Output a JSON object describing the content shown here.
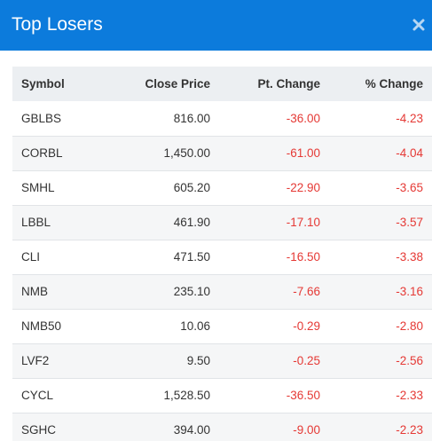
{
  "modal": {
    "title": "Top Losers",
    "close_icon": "close-x-icon",
    "header_color": "#0c7bdc"
  },
  "table": {
    "headers": {
      "symbol": "Symbol",
      "close_price": "Close Price",
      "pt_change": "Pt. Change",
      "pct_change": "% Change"
    },
    "negative_color": "#e53935",
    "rows": [
      {
        "symbol": "GBLBS",
        "close_price": "816.00",
        "pt_change": "-36.00",
        "pct_change": "-4.23"
      },
      {
        "symbol": "CORBL",
        "close_price": "1,450.00",
        "pt_change": "-61.00",
        "pct_change": "-4.04"
      },
      {
        "symbol": "SMHL",
        "close_price": "605.20",
        "pt_change": "-22.90",
        "pct_change": "-3.65"
      },
      {
        "symbol": "LBBL",
        "close_price": "461.90",
        "pt_change": "-17.10",
        "pct_change": "-3.57"
      },
      {
        "symbol": "CLI",
        "close_price": "471.50",
        "pt_change": "-16.50",
        "pct_change": "-3.38"
      },
      {
        "symbol": "NMB",
        "close_price": "235.10",
        "pt_change": "-7.66",
        "pct_change": "-3.16"
      },
      {
        "symbol": "NMB50",
        "close_price": "10.06",
        "pt_change": "-0.29",
        "pct_change": "-2.80"
      },
      {
        "symbol": "LVF2",
        "close_price": "9.50",
        "pt_change": "-0.25",
        "pct_change": "-2.56"
      },
      {
        "symbol": "CYCL",
        "close_price": "1,528.50",
        "pt_change": "-36.50",
        "pct_change": "-2.33"
      },
      {
        "symbol": "SGHC",
        "close_price": "394.00",
        "pt_change": "-9.00",
        "pct_change": "-2.23"
      }
    ]
  }
}
